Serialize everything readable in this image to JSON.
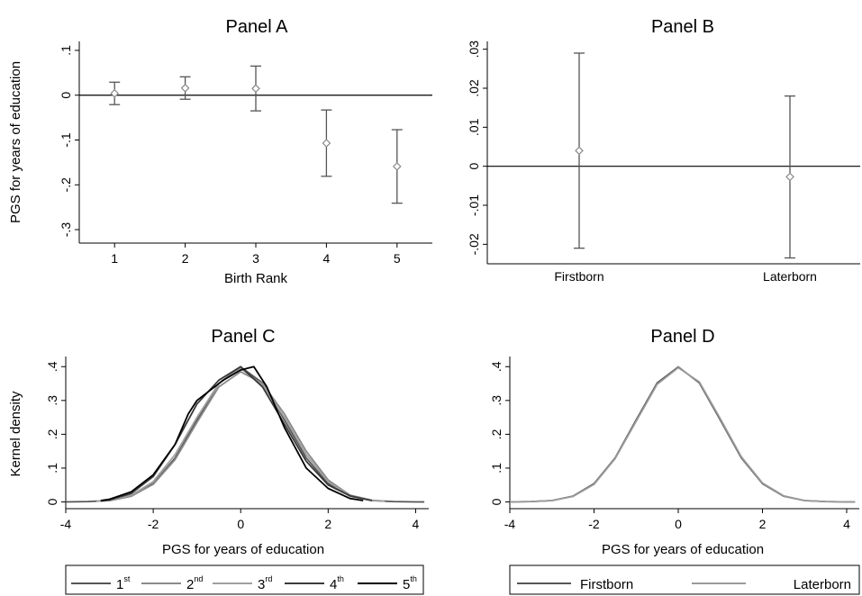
{
  "chart_data": [
    {
      "panel": "A",
      "type": "scatter",
      "title": "Panel A",
      "xlabel": "Birth Rank",
      "ylabel": "PGS for years of education",
      "xlim": [
        0.5,
        5.5
      ],
      "ylim": [
        -0.33,
        0.12
      ],
      "xticks": [
        "1",
        "2",
        "3",
        "4",
        "5"
      ],
      "yticks": [
        ".1",
        "0",
        "-.1",
        "-.2",
        "-.3"
      ],
      "reference_line": 0,
      "points": [
        {
          "x": 1,
          "y": 0.004,
          "lo": -0.021,
          "hi": 0.029
        },
        {
          "x": 2,
          "y": 0.016,
          "lo": -0.009,
          "hi": 0.041
        },
        {
          "x": 3,
          "y": 0.015,
          "lo": -0.035,
          "hi": 0.065
        },
        {
          "x": 4,
          "y": -0.107,
          "lo": -0.181,
          "hi": -0.033
        },
        {
          "x": 5,
          "y": -0.159,
          "lo": -0.241,
          "hi": -0.077
        }
      ]
    },
    {
      "panel": "B",
      "type": "scatter",
      "title": "Panel B",
      "xlabel": "",
      "ylabel": "",
      "ylim": [
        -0.025,
        0.032
      ],
      "categories": [
        "Firstborn",
        "Laterborn"
      ],
      "yticks": [
        ".03",
        ".02",
        ".01",
        "0",
        "-.01",
        "-.02"
      ],
      "reference_line": 0,
      "points": [
        {
          "x": "Firstborn",
          "y": 0.004,
          "lo": -0.021,
          "hi": 0.029
        },
        {
          "x": "Laterborn",
          "y": -0.0027,
          "lo": -0.0235,
          "hi": 0.018
        }
      ]
    },
    {
      "panel": "C",
      "type": "line",
      "title": "Panel C",
      "xlabel": "PGS for years of education",
      "ylabel": "Kernel density",
      "xlim": [
        -4,
        4.3
      ],
      "ylim": [
        -0.02,
        0.43
      ],
      "xticks": [
        "-4",
        "-2",
        "0",
        "2",
        "4"
      ],
      "yticks": [
        "0",
        ".1",
        ".2",
        ".3",
        ".4"
      ],
      "legend": "bottom",
      "series": [
        {
          "name": "1",
          "name_sup": "st",
          "color": "#555555",
          "x": [
            -4,
            -3.5,
            -3,
            -2.5,
            -2,
            -1.5,
            -1,
            -0.5,
            0,
            0.5,
            1,
            1.5,
            2,
            2.5,
            3,
            3.5,
            4,
            4.2
          ],
          "y": [
            0,
            0.001,
            0.004,
            0.017,
            0.054,
            0.13,
            0.242,
            0.35,
            0.399,
            0.352,
            0.242,
            0.13,
            0.054,
            0.017,
            0.004,
            0.001,
            0,
            0
          ]
        },
        {
          "name": "2",
          "name_sup": "nd",
          "color": "#8a8a8a",
          "x": [
            -3.3,
            -3,
            -2.5,
            -2,
            -1.5,
            -1,
            -0.5,
            0,
            0.5,
            1,
            1.5,
            2,
            2.5,
            3,
            3.3
          ],
          "y": [
            0.002,
            0.004,
            0.017,
            0.052,
            0.125,
            0.235,
            0.34,
            0.385,
            0.35,
            0.26,
            0.15,
            0.065,
            0.02,
            0.005,
            0.002
          ]
        },
        {
          "name": "3",
          "name_sup": "rd",
          "color": "#a0a0a0",
          "x": [
            -3.3,
            -3,
            -2.5,
            -2,
            -1.5,
            -1,
            -0.5,
            0,
            0.5,
            1,
            1.5,
            2,
            2.5,
            3,
            3.3
          ],
          "y": [
            0.002,
            0.005,
            0.02,
            0.06,
            0.14,
            0.25,
            0.35,
            0.395,
            0.345,
            0.25,
            0.14,
            0.06,
            0.018,
            0.005,
            0.002
          ]
        },
        {
          "name": "4",
          "name_sup": "th",
          "color": "#3a3a3a",
          "x": [
            -3.2,
            -3,
            -2.5,
            -2,
            -1.5,
            -1,
            -0.5,
            0,
            0.5,
            1,
            1.5,
            2,
            2.5,
            3
          ],
          "y": [
            0.003,
            0.006,
            0.025,
            0.075,
            0.17,
            0.29,
            0.36,
            0.4,
            0.34,
            0.23,
            0.12,
            0.05,
            0.018,
            0.004
          ]
        },
        {
          "name": "5",
          "name_sup": "th",
          "color": "#000000",
          "x": [
            -3.2,
            -3,
            -2.5,
            -2,
            -1.5,
            -1.2,
            -1,
            -0.7,
            -0.4,
            0,
            0.3,
            0.6,
            1,
            1.5,
            2,
            2.5,
            2.8
          ],
          "y": [
            0.004,
            0.008,
            0.03,
            0.08,
            0.17,
            0.26,
            0.3,
            0.33,
            0.36,
            0.39,
            0.4,
            0.34,
            0.22,
            0.1,
            0.04,
            0.01,
            0.004
          ]
        }
      ]
    },
    {
      "panel": "D",
      "type": "line",
      "title": "Panel D",
      "xlabel": "PGS for years of education",
      "ylabel": "",
      "xlim": [
        -4,
        4.3
      ],
      "ylim": [
        -0.02,
        0.43
      ],
      "xticks": [
        "-4",
        "-2",
        "0",
        "2",
        "4"
      ],
      "yticks": [
        "0",
        ".1",
        ".2",
        ".3",
        ".4"
      ],
      "legend": "bottom",
      "series": [
        {
          "name": "Firstborn",
          "color": "#555555",
          "x": [
            -4,
            -3.5,
            -3,
            -2.5,
            -2,
            -1.5,
            -1,
            -0.5,
            0,
            0.5,
            1,
            1.5,
            2,
            2.5,
            3,
            3.5,
            4,
            4.2
          ],
          "y": [
            0,
            0.001,
            0.004,
            0.017,
            0.054,
            0.13,
            0.242,
            0.352,
            0.399,
            0.352,
            0.242,
            0.13,
            0.054,
            0.017,
            0.004,
            0.001,
            0,
            0
          ]
        },
        {
          "name": "Laterborn",
          "color": "#9a9a9a",
          "x": [
            -4,
            -3.5,
            -3,
            -2.5,
            -2,
            -1.5,
            -1,
            -0.5,
            0,
            0.5,
            1,
            1.5,
            2,
            2.5,
            3,
            3.5,
            4,
            4.2
          ],
          "y": [
            0,
            0.001,
            0.004,
            0.016,
            0.052,
            0.128,
            0.238,
            0.348,
            0.397,
            0.355,
            0.246,
            0.133,
            0.056,
            0.018,
            0.004,
            0.001,
            0,
            0
          ]
        }
      ]
    }
  ]
}
